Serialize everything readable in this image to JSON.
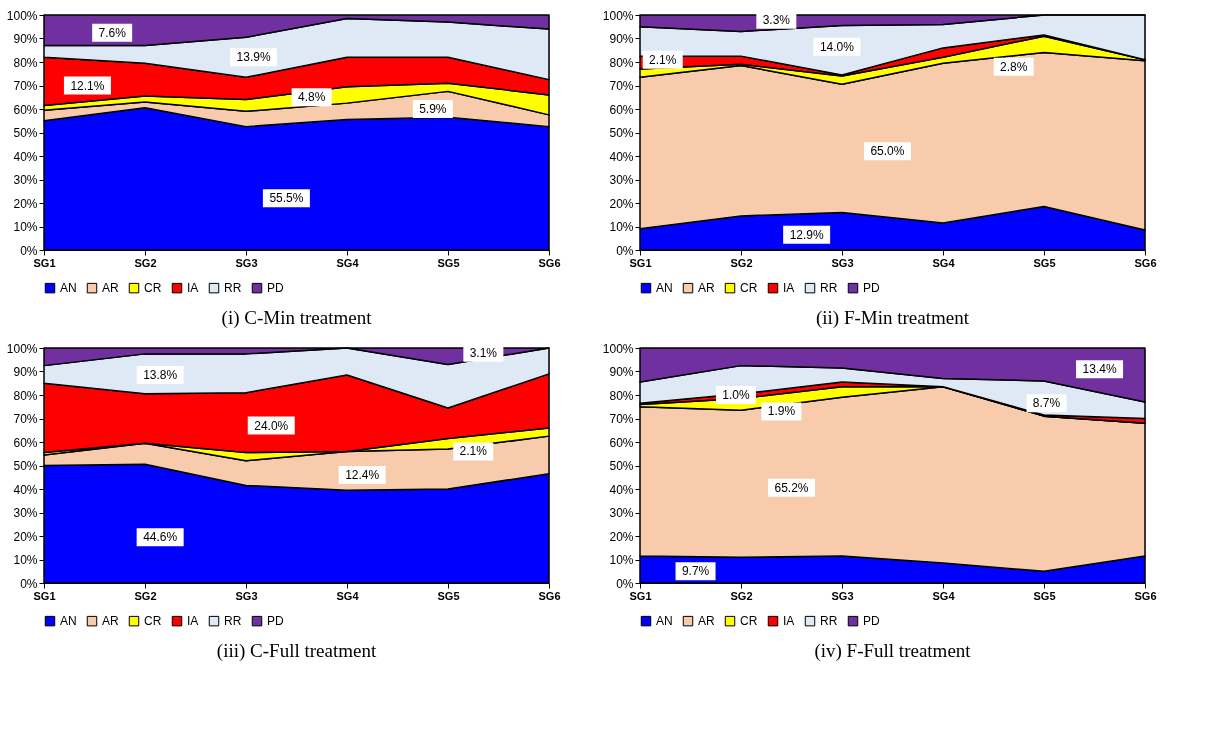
{
  "chart_data": [
    {
      "type": "area",
      "title": "(i) C-Min treatment",
      "stacked": true,
      "legend": "bottom",
      "categories": [
        "SG1",
        "SG2",
        "SG3",
        "SG4",
        "SG5",
        "SG6"
      ],
      "ylim": [
        0,
        100
      ],
      "yticks": [
        {
          "value": 0,
          "label": "0%"
        },
        {
          "value": 10,
          "label": "10%"
        },
        {
          "value": 20,
          "label": "20%"
        },
        {
          "value": 30,
          "label": "30%"
        },
        {
          "value": 40,
          "label": "40%"
        },
        {
          "value": 50,
          "label": "50%"
        },
        {
          "value": 60,
          "label": "60%"
        },
        {
          "value": 70,
          "label": "70%"
        },
        {
          "value": 80,
          "label": "80%"
        },
        {
          "value": 90,
          "label": "90%"
        },
        {
          "value": 100,
          "label": "100%"
        }
      ],
      "series": [
        {
          "name": "AN",
          "color": "#0000ff",
          "values": [
            55,
            60.5,
            52.5,
            55.5,
            56.5,
            52.5
          ]
        },
        {
          "name": "AR",
          "color": "#f8cbad",
          "values": [
            4.5,
            2.5,
            6.5,
            7,
            11,
            5
          ]
        },
        {
          "name": "CR",
          "color": "#ffff00",
          "values": [
            2,
            2.5,
            5,
            7,
            3.5,
            8.5
          ]
        },
        {
          "name": "IA",
          "color": "#ff0000",
          "values": [
            20.5,
            14,
            9.5,
            12.5,
            11,
            6.5
          ]
        },
        {
          "name": "RR",
          "color": "#dee9f5",
          "values": [
            5,
            7.5,
            17,
            16.5,
            15,
            21.5
          ]
        },
        {
          "name": "PD",
          "color": "#7030a0",
          "values": [
            13,
            13,
            9.5,
            1.5,
            3,
            6
          ]
        }
      ],
      "annotations": [
        "7.6%",
        "12.1%",
        "13.9%",
        "4.8%",
        "5.9%",
        "55.5%"
      ]
    },
    {
      "type": "area",
      "title": "(ii) F-Min treatment",
      "stacked": true,
      "legend": "bottom",
      "categories": [
        "SG1",
        "SG2",
        "SG3",
        "SG4",
        "SG5",
        "SG6"
      ],
      "ylim": [
        0,
        100
      ],
      "yticks": [
        {
          "value": 0,
          "label": "0%"
        },
        {
          "value": 10,
          "label": "10%"
        },
        {
          "value": 20,
          "label": "20%"
        },
        {
          "value": 30,
          "label": "30%"
        },
        {
          "value": 40,
          "label": "40%"
        },
        {
          "value": 50,
          "label": "50%"
        },
        {
          "value": 60,
          "label": "60%"
        },
        {
          "value": 70,
          "label": "70%"
        },
        {
          "value": 80,
          "label": "80%"
        },
        {
          "value": 90,
          "label": "90%"
        },
        {
          "value": 100,
          "label": "100%"
        }
      ],
      "series": [
        {
          "name": "AN",
          "color": "#0000ff",
          "values": [
            9,
            14.5,
            16,
            11.5,
            18.5,
            8.5
          ]
        },
        {
          "name": "AR",
          "color": "#f8cbad",
          "values": [
            64.5,
            64,
            54.5,
            68,
            65.5,
            72
          ]
        },
        {
          "name": "CR",
          "color": "#ffff00",
          "values": [
            3.5,
            0.5,
            3.5,
            2.5,
            7,
            0.5
          ]
        },
        {
          "name": "IA",
          "color": "#ff0000",
          "values": [
            5.5,
            3.5,
            0.5,
            4,
            0.5,
            0
          ]
        },
        {
          "name": "RR",
          "color": "#dee9f5",
          "values": [
            12.5,
            10.5,
            21,
            10,
            8.5,
            19
          ]
        },
        {
          "name": "PD",
          "color": "#7030a0",
          "values": [
            5,
            7,
            4.5,
            4,
            0,
            0
          ]
        }
      ],
      "annotations": [
        "3.3%",
        "2.1%",
        "14.0%",
        "2.8%",
        "65.0%",
        "12.9%"
      ]
    },
    {
      "type": "area",
      "title": "(iii) C-Full treatment",
      "stacked": true,
      "legend": "bottom",
      "categories": [
        "SG1",
        "SG2",
        "SG3",
        "SG4",
        "SG5",
        "SG6"
      ],
      "ylim": [
        0,
        100
      ],
      "yticks": [
        {
          "value": 0,
          "label": "0%"
        },
        {
          "value": 10,
          "label": "10%"
        },
        {
          "value": 20,
          "label": "20%"
        },
        {
          "value": 30,
          "label": "30%"
        },
        {
          "value": 40,
          "label": "40%"
        },
        {
          "value": 50,
          "label": "50%"
        },
        {
          "value": 60,
          "label": "60%"
        },
        {
          "value": 70,
          "label": "70%"
        },
        {
          "value": 80,
          "label": "80%"
        },
        {
          "value": 90,
          "label": "90%"
        },
        {
          "value": 100,
          "label": "100%"
        }
      ],
      "series": [
        {
          "name": "AN",
          "color": "#0000ff",
          "values": [
            50,
            50.5,
            41.5,
            39.5,
            40,
            46.5
          ]
        },
        {
          "name": "AR",
          "color": "#f8cbad",
          "values": [
            4.5,
            9,
            10.5,
            16.5,
            17,
            16
          ]
        },
        {
          "name": "CR",
          "color": "#ffff00",
          "values": [
            1,
            0,
            3.5,
            0,
            4.5,
            3.5
          ]
        },
        {
          "name": "IA",
          "color": "#ff0000",
          "values": [
            29.5,
            21,
            25.5,
            32.5,
            13,
            23
          ]
        },
        {
          "name": "RR",
          "color": "#dee9f5",
          "values": [
            7.5,
            17,
            16.5,
            11.5,
            18.5,
            11
          ]
        },
        {
          "name": "PD",
          "color": "#7030a0",
          "values": [
            7.5,
            2.5,
            2.5,
            0,
            7,
            0
          ]
        }
      ],
      "annotations": [
        "13.8%",
        "24.0%",
        "12.4%",
        "2.1%",
        "3.1%",
        "44.6%"
      ]
    },
    {
      "type": "area",
      "title": "(iv) F-Full treatment",
      "stacked": true,
      "legend": "bottom",
      "categories": [
        "SG1",
        "SG2",
        "SG3",
        "SG4",
        "SG5",
        "SG6"
      ],
      "ylim": [
        0,
        100
      ],
      "yticks": [
        {
          "value": 0,
          "label": "0%"
        },
        {
          "value": 10,
          "label": "10%"
        },
        {
          "value": 20,
          "label": "20%"
        },
        {
          "value": 30,
          "label": "30%"
        },
        {
          "value": 40,
          "label": "40%"
        },
        {
          "value": 50,
          "label": "50%"
        },
        {
          "value": 60,
          "label": "60%"
        },
        {
          "value": 70,
          "label": "70%"
        },
        {
          "value": 80,
          "label": "80%"
        },
        {
          "value": 90,
          "label": "90%"
        },
        {
          "value": 100,
          "label": "100%"
        }
      ],
      "series": [
        {
          "name": "AN",
          "color": "#0000ff",
          "values": [
            11.5,
            11,
            11.5,
            8.5,
            5,
            11.5
          ]
        },
        {
          "name": "AR",
          "color": "#f8cbad",
          "values": [
            63.5,
            62.5,
            67.5,
            75,
            66,
            56.5
          ]
        },
        {
          "name": "CR",
          "color": "#ffff00",
          "values": [
            1,
            5,
            4.5,
            0,
            0,
            0
          ]
        },
        {
          "name": "IA",
          "color": "#ff0000",
          "values": [
            0.5,
            2,
            2,
            0,
            0.5,
            2
          ]
        },
        {
          "name": "RR",
          "color": "#dee9f5",
          "values": [
            9,
            12,
            6,
            3.5,
            14.5,
            7
          ]
        },
        {
          "name": "PD",
          "color": "#7030a0",
          "values": [
            14.5,
            7.5,
            8.5,
            13,
            14,
            23
          ]
        }
      ],
      "annotations": [
        "1.0%",
        "1.9%",
        "65.2%",
        "8.7%",
        "13.4%",
        "9.7%"
      ]
    }
  ]
}
